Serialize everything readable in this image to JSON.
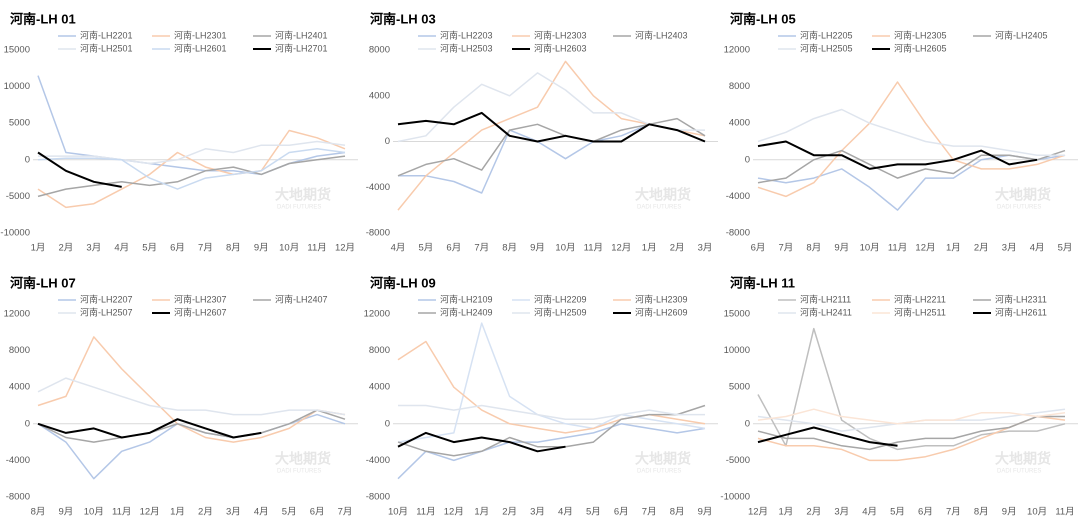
{
  "watermark": {
    "cn": "大地期货",
    "en": "DADI FUTURES"
  },
  "chart_data": [
    {
      "type": "line",
      "title": "河南-LH 01",
      "categories": [
        "1月",
        "2月",
        "3月",
        "4月",
        "5月",
        "6月",
        "7月",
        "8月",
        "9月",
        "10月",
        "11月",
        "12月"
      ],
      "ylim": [
        -10000,
        15000
      ],
      "yticks": [
        -10000,
        -5000,
        0,
        5000,
        10000,
        15000
      ],
      "series": [
        {
          "name": "河南-LH2201",
          "color": "#b4c7e7",
          "values": [
            11500,
            1000,
            500,
            0,
            -500,
            -1000,
            -1500,
            -1500,
            -2000,
            -500,
            500,
            1000
          ]
        },
        {
          "name": "河南-LH2301",
          "color": "#f8cbad",
          "values": [
            -4000,
            -6500,
            -6000,
            -4000,
            -2000,
            1000,
            -1000,
            -2000,
            -1500,
            4000,
            3000,
            1500
          ]
        },
        {
          "name": "河南-LH2401",
          "color": "#a6a6a6",
          "values": [
            -5000,
            -4000,
            -3500,
            -3000,
            -3500,
            -3000,
            -1500,
            -1000,
            -2000,
            -500,
            0,
            500
          ]
        },
        {
          "name": "河南-LH2501",
          "color": "#dfe5ee",
          "values": [
            500,
            500,
            500,
            0,
            -500,
            0,
            1500,
            1000,
            2000,
            2000,
            2500,
            2000
          ]
        },
        {
          "name": "河南-LH2601",
          "color": "#c9daf0",
          "values": [
            0,
            200,
            200,
            0,
            -2500,
            -4000,
            -2500,
            -2000,
            -1500,
            1000,
            1500,
            1000
          ]
        },
        {
          "name": "河南-LH2701",
          "color": "#000000",
          "values": [
            1000,
            -1500,
            -3000,
            -3700,
            null,
            null,
            null,
            null,
            null,
            null,
            null,
            null
          ]
        }
      ]
    },
    {
      "type": "line",
      "title": "河南-LH 03",
      "categories": [
        "4月",
        "5月",
        "6月",
        "7月",
        "8月",
        "9月",
        "10月",
        "11月",
        "12月",
        "1月",
        "2月",
        "3月"
      ],
      "ylim": [
        -8000,
        8000
      ],
      "yticks": [
        -8000,
        -4000,
        0,
        4000,
        8000
      ],
      "series": [
        {
          "name": "河南-LH2203",
          "color": "#b4c7e7",
          "values": [
            -3000,
            -3000,
            -3500,
            -4500,
            1000,
            0,
            -1500,
            0,
            500,
            1500,
            1000,
            0
          ]
        },
        {
          "name": "河南-LH2303",
          "color": "#f8cbad",
          "values": [
            -6000,
            -3000,
            -1000,
            1000,
            2000,
            3000,
            7000,
            4000,
            2000,
            1500,
            1000,
            500
          ]
        },
        {
          "name": "河南-LH2403",
          "color": "#a6a6a6",
          "values": [
            -3000,
            -2000,
            -1500,
            -2500,
            1000,
            1500,
            500,
            0,
            1000,
            1500,
            2000,
            500
          ]
        },
        {
          "name": "河南-LH2503",
          "color": "#dfe5ee",
          "values": [
            0,
            500,
            3000,
            5000,
            4000,
            6000,
            4500,
            2500,
            2500,
            1500,
            1000,
            1000
          ]
        },
        {
          "name": "河南-LH2603",
          "color": "#000000",
          "values": [
            1500,
            1800,
            1500,
            2500,
            500,
            0,
            500,
            0,
            0,
            1500,
            1000,
            0
          ]
        }
      ]
    },
    {
      "type": "line",
      "title": "河南-LH 05",
      "categories": [
        "6月",
        "7月",
        "8月",
        "9月",
        "10月",
        "11月",
        "12月",
        "1月",
        "2月",
        "3月",
        "4月",
        "5月"
      ],
      "ylim": [
        -8000,
        12000
      ],
      "yticks": [
        -8000,
        -4000,
        0,
        4000,
        8000,
        12000
      ],
      "series": [
        {
          "name": "河南-LH2205",
          "color": "#b4c7e7",
          "values": [
            -2000,
            -2500,
            -2000,
            -1000,
            -3000,
            -5500,
            -2000,
            -2000,
            0,
            500,
            0,
            500
          ]
        },
        {
          "name": "河南-LH2305",
          "color": "#f8cbad",
          "values": [
            -3000,
            -4000,
            -2500,
            1000,
            4000,
            8500,
            4000,
            0,
            -1000,
            -1000,
            -500,
            500
          ]
        },
        {
          "name": "河南-LH2405",
          "color": "#a6a6a6",
          "values": [
            -2500,
            -2000,
            0,
            1000,
            -500,
            -2000,
            -1000,
            -1500,
            500,
            500,
            0,
            1000
          ]
        },
        {
          "name": "河南-LH2505",
          "color": "#dfe5ee",
          "values": [
            2000,
            3000,
            4500,
            5500,
            4000,
            3000,
            2000,
            1500,
            1500,
            1000,
            500,
            500
          ]
        },
        {
          "name": "河南-LH2605",
          "color": "#000000",
          "values": [
            1500,
            2000,
            500,
            500,
            -1000,
            -500,
            -500,
            0,
            1000,
            -500,
            0,
            null
          ]
        }
      ]
    },
    {
      "type": "line",
      "title": "河南-LH 07",
      "categories": [
        "8月",
        "9月",
        "10月",
        "11月",
        "12月",
        "1月",
        "2月",
        "3月",
        "4月",
        "5月",
        "6月",
        "7月"
      ],
      "ylim": [
        -8000,
        12000
      ],
      "yticks": [
        -8000,
        -4000,
        0,
        4000,
        8000,
        12000
      ],
      "series": [
        {
          "name": "河南-LH2207",
          "color": "#b4c7e7",
          "values": [
            0,
            -2000,
            -6000,
            -3000,
            -2000,
            0,
            -1000,
            -1500,
            -1000,
            0,
            1000,
            0
          ]
        },
        {
          "name": "河南-LH2307",
          "color": "#f8cbad",
          "values": [
            2000,
            3000,
            9500,
            6000,
            3000,
            0,
            -1500,
            -2000,
            -1500,
            -500,
            1500,
            1000
          ]
        },
        {
          "name": "河南-LH2407",
          "color": "#a6a6a6",
          "values": [
            0,
            -1500,
            -2000,
            -1500,
            -1000,
            0,
            -1000,
            -1500,
            -1000,
            0,
            1500,
            500
          ]
        },
        {
          "name": "河南-LH2507",
          "color": "#dfe5ee",
          "values": [
            3500,
            5000,
            4000,
            3000,
            2000,
            1500,
            1500,
            1000,
            1000,
            1500,
            1500,
            1000
          ]
        },
        {
          "name": "河南-LH2607",
          "color": "#000000",
          "values": [
            0,
            -1000,
            -500,
            -1500,
            -1000,
            500,
            -500,
            -1500,
            -1000,
            null,
            null,
            null
          ]
        }
      ]
    },
    {
      "type": "line",
      "title": "河南-LH 09",
      "categories": [
        "10月",
        "11月",
        "12月",
        "1月",
        "2月",
        "3月",
        "4月",
        "5月",
        "6月",
        "7月",
        "8月",
        "9月"
      ],
      "ylim": [
        -8000,
        12000
      ],
      "yticks": [
        -8000,
        -4000,
        0,
        4000,
        8000,
        12000
      ],
      "series": [
        {
          "name": "河南-LH2109",
          "color": "#b4c7e7",
          "values": [
            -6000,
            -3000,
            -4000,
            -3000,
            -2000,
            -2000,
            -1500,
            -1000,
            0,
            -500,
            -1000,
            -500
          ]
        },
        {
          "name": "河南-LH2209",
          "color": "#d6e2f3",
          "values": [
            -2000,
            -1500,
            -1000,
            11000,
            3000,
            1000,
            0,
            -500,
            1000,
            500,
            0,
            -500
          ]
        },
        {
          "name": "河南-LH2309",
          "color": "#f8cbad",
          "values": [
            7000,
            9000,
            4000,
            1500,
            0,
            -500,
            -1000,
            -500,
            500,
            1000,
            500,
            0
          ]
        },
        {
          "name": "河南-LH2409",
          "color": "#a6a6a6",
          "values": [
            -2000,
            -3000,
            -3500,
            -3000,
            -1500,
            -2500,
            -2500,
            -2000,
            500,
            1000,
            1000,
            2000
          ]
        },
        {
          "name": "河南-LH2509",
          "color": "#dfe5ee",
          "values": [
            2000,
            2000,
            1500,
            2000,
            1500,
            1000,
            500,
            500,
            1000,
            1500,
            1000,
            1000
          ]
        },
        {
          "name": "河南-LH2609",
          "color": "#000000",
          "values": [
            -2500,
            -1000,
            -2000,
            -1500,
            -2000,
            -3000,
            -2500,
            null,
            null,
            null,
            null,
            null
          ]
        }
      ]
    },
    {
      "type": "line",
      "title": "河南-LH 11",
      "categories": [
        "12月",
        "1月",
        "2月",
        "3月",
        "4月",
        "5月",
        "6月",
        "7月",
        "8月",
        "9月",
        "10月",
        "11月"
      ],
      "ylim": [
        -10000,
        15000
      ],
      "yticks": [
        -10000,
        -5000,
        0,
        5000,
        10000,
        15000
      ],
      "series": [
        {
          "name": "河南-LH2111",
          "color": "#bfbfbf",
          "values": [
            4000,
            -3000,
            13000,
            500,
            -2000,
            -3500,
            -3000,
            -3000,
            -1500,
            -1000,
            -1000,
            0
          ]
        },
        {
          "name": "河南-LH2211",
          "color": "#f8cbad",
          "values": [
            -2000,
            -3000,
            -3000,
            -3500,
            -5000,
            -5000,
            -4500,
            -3500,
            -2000,
            -500,
            1000,
            500
          ]
        },
        {
          "name": "河南-LH2311",
          "color": "#a6a6a6",
          "values": [
            -1000,
            -2000,
            -2000,
            -3000,
            -3500,
            -2500,
            -2000,
            -2000,
            -1000,
            -500,
            1000,
            1000
          ]
        },
        {
          "name": "河南-LH2411",
          "color": "#dfe5ee",
          "values": [
            1000,
            500,
            0,
            -1000,
            -500,
            0,
            500,
            500,
            500,
            1000,
            1500,
            2000
          ]
        },
        {
          "name": "河南-LH2511",
          "color": "#fbe5d6",
          "values": [
            500,
            1000,
            2000,
            1000,
            500,
            0,
            500,
            500,
            1500,
            1500,
            1000,
            1500
          ]
        },
        {
          "name": "河南-LH2611",
          "color": "#000000",
          "values": [
            -2500,
            -1500,
            -500,
            -1500,
            -2500,
            -3000,
            null,
            null,
            null,
            null,
            null,
            null
          ]
        }
      ]
    }
  ]
}
